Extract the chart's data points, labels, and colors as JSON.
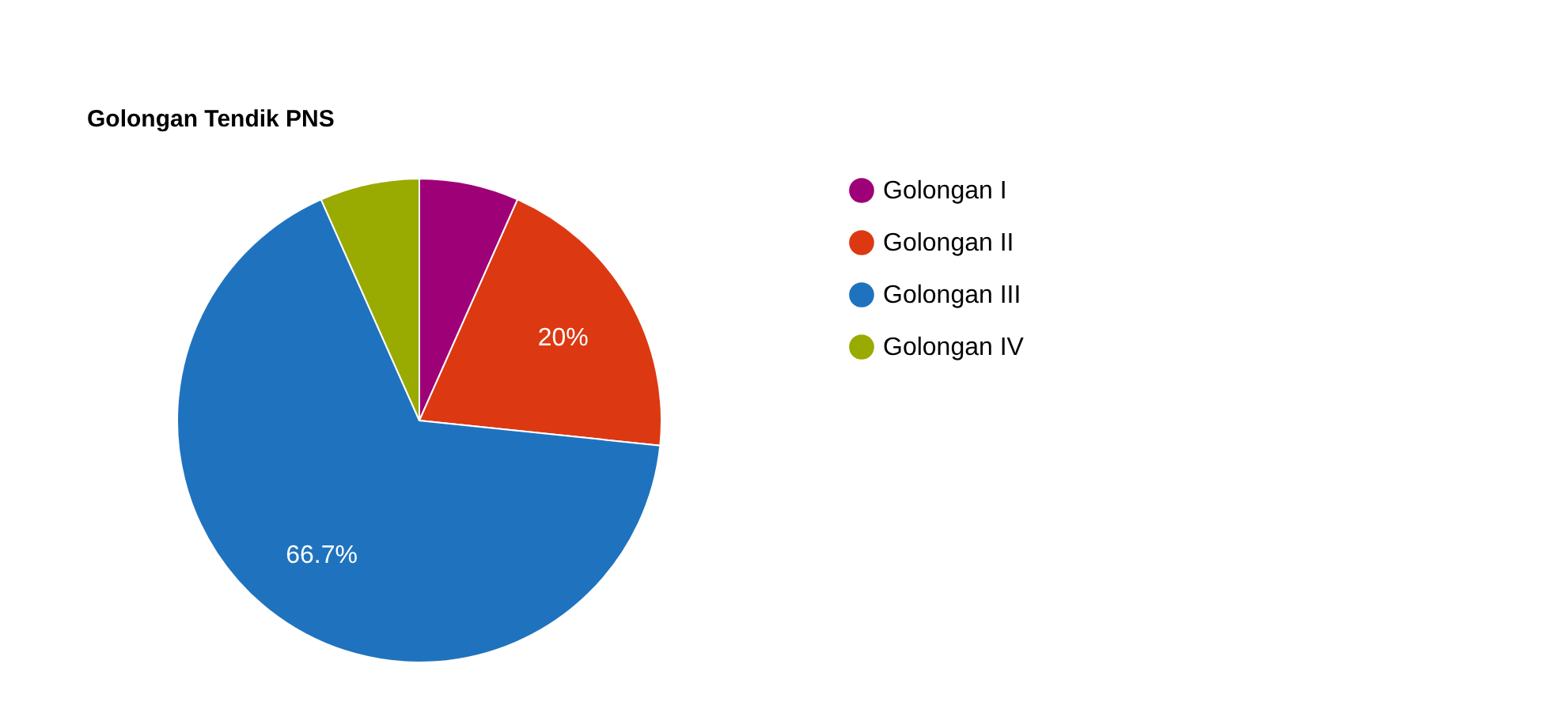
{
  "chart_data": {
    "type": "pie",
    "title": "Golongan Tendik PNS",
    "categories": [
      "Golongan I",
      "Golongan II",
      "Golongan III",
      "Golongan IV"
    ],
    "values": [
      6.65,
      20,
      66.7,
      6.65
    ],
    "colors": [
      "#9e0078",
      "#dc3912",
      "#1f73be",
      "#99aa00"
    ],
    "value_labels": [
      null,
      "20%",
      "66.7%",
      null
    ],
    "legend": "right"
  }
}
